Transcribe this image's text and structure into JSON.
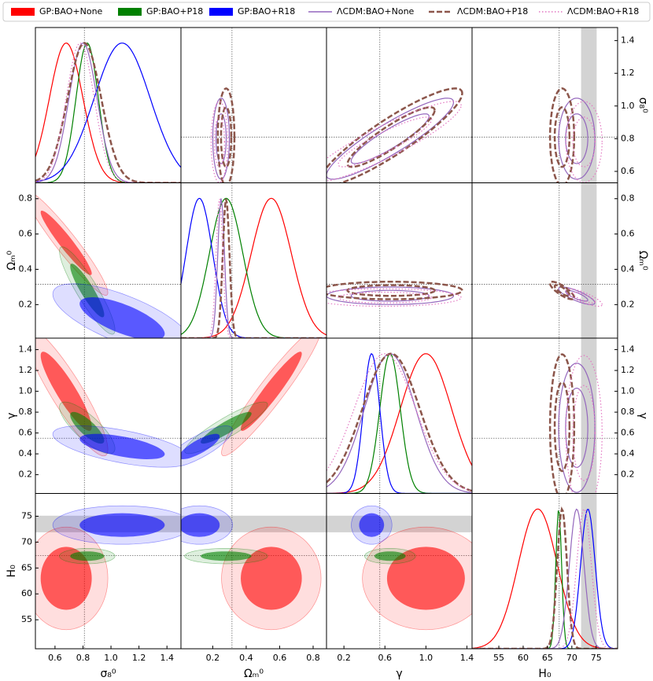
{
  "chart_data": {
    "type": "corner",
    "params": [
      {
        "label": "σ₈⁰",
        "xlim": [
          0.46,
          1.5
        ],
        "ylim": [
          0.53,
          1.48
        ],
        "xticks": [
          0.6,
          0.8,
          {
            "value": 1.0,
            "label": "1.0"
          },
          1.2,
          1.4
        ],
        "yticks": [
          0.6,
          0.8,
          {
            "value": 1.0,
            "label": "1.0"
          },
          1.2,
          1.4
        ]
      },
      {
        "label": "Ωₘ⁰",
        "xlim": [
          0.01,
          0.88
        ],
        "ylim": [
          0.01,
          0.89
        ],
        "xticks": [
          0.2,
          0.4,
          0.6,
          0.8
        ],
        "yticks": [
          0.2,
          0.4,
          0.6,
          0.8
        ]
      },
      {
        "label": "γ",
        "xlim": [
          0.03,
          1.45
        ],
        "ylim": [
          0.02,
          1.51
        ],
        "xticks": [
          0.2,
          0.6,
          {
            "value": 1.0,
            "label": "1.0"
          },
          1.4
        ],
        "yticks": [
          0.2,
          0.4,
          0.6,
          0.8,
          {
            "value": 1.0,
            "label": "1.0"
          },
          1.2,
          1.4
        ]
      },
      {
        "label": "H₀",
        "xlim": [
          49.5,
          79.4
        ],
        "ylim": [
          49.4,
          79.4
        ],
        "xticks": [
          55,
          60,
          65,
          70,
          75
        ],
        "yticks": [
          55,
          60,
          65,
          70,
          75
        ]
      }
    ],
    "fiducial": [
      0.81,
      0.315,
      0.55,
      67.4
    ],
    "h0_band": [
      71.9,
      75.1
    ],
    "series": [
      {
        "name": "GP:BAO+None",
        "color": "#ff0000",
        "style": "filled",
        "mean": [
          0.68,
          0.55,
          1.0,
          63
        ],
        "sd": [
          0.12,
          0.12,
          0.25,
          4
        ],
        "corr": [
          [
            1,
            -0.95,
            -0.9,
            0
          ],
          [
            -0.95,
            1,
            0.95,
            0
          ],
          [
            -0.9,
            0.95,
            1,
            0
          ],
          [
            0,
            0,
            0,
            1
          ]
        ]
      },
      {
        "name": "GP:BAO+P18",
        "color": "#008000",
        "style": "filled",
        "mean": [
          0.83,
          0.28,
          0.65,
          67.3
        ],
        "sd": [
          0.08,
          0.1,
          0.1,
          0.6
        ],
        "corr": [
          [
            1,
            -0.9,
            -0.8,
            0
          ],
          [
            -0.9,
            1,
            0.9,
            0
          ],
          [
            -0.8,
            0.9,
            1,
            0
          ],
          [
            0,
            0,
            0,
            1
          ]
        ]
      },
      {
        "name": "GP:BAO+R18",
        "color": "#0000ff",
        "style": "filled",
        "mean": [
          1.08,
          0.12,
          0.47,
          73.3
        ],
        "sd": [
          0.2,
          0.08,
          0.08,
          1.5
        ],
        "corr": [
          [
            1,
            -0.7,
            -0.6,
            0
          ],
          [
            -0.7,
            1,
            0.8,
            0
          ],
          [
            -0.6,
            0.8,
            1,
            0
          ],
          [
            0,
            0,
            0,
            1
          ]
        ]
      },
      {
        "name": "ΛCDM:BAO+None",
        "color": "#9467bd",
        "style": "solid",
        "mean": [
          0.8,
          0.25,
          0.65,
          71
        ],
        "sd": [
          0.1,
          0.02,
          0.25,
          1.5
        ],
        "corr": [
          [
            1,
            0,
            0.9,
            0
          ],
          [
            0,
            1,
            0,
            -0.8
          ],
          [
            0.9,
            0,
            1,
            0
          ],
          [
            0,
            -0.8,
            0,
            1
          ]
        ]
      },
      {
        "name": "ΛCDM:BAO+P18",
        "color": "#8c564b",
        "style": "dashed",
        "mean": [
          0.81,
          0.28,
          0.66,
          68
        ],
        "sd": [
          0.12,
          0.02,
          0.28,
          1.0
        ],
        "corr": [
          [
            1,
            0,
            0.9,
            0
          ],
          [
            0,
            1,
            0,
            -0.8
          ],
          [
            0.9,
            0,
            1,
            0
          ],
          [
            0,
            -0.8,
            0,
            1
          ]
        ]
      },
      {
        "name": "ΛCDM:BAO+R18",
        "color": "#e377c2",
        "style": "dotted",
        "mean": [
          0.78,
          0.24,
          0.6,
          72.5
        ],
        "sd": [
          0.1,
          0.02,
          0.3,
          1.5
        ],
        "corr": [
          [
            1,
            0,
            0.9,
            0
          ],
          [
            0,
            1,
            0,
            -0.8
          ],
          [
            0.9,
            0,
            1,
            0
          ],
          [
            0,
            -0.8,
            0,
            1
          ]
        ]
      }
    ]
  }
}
